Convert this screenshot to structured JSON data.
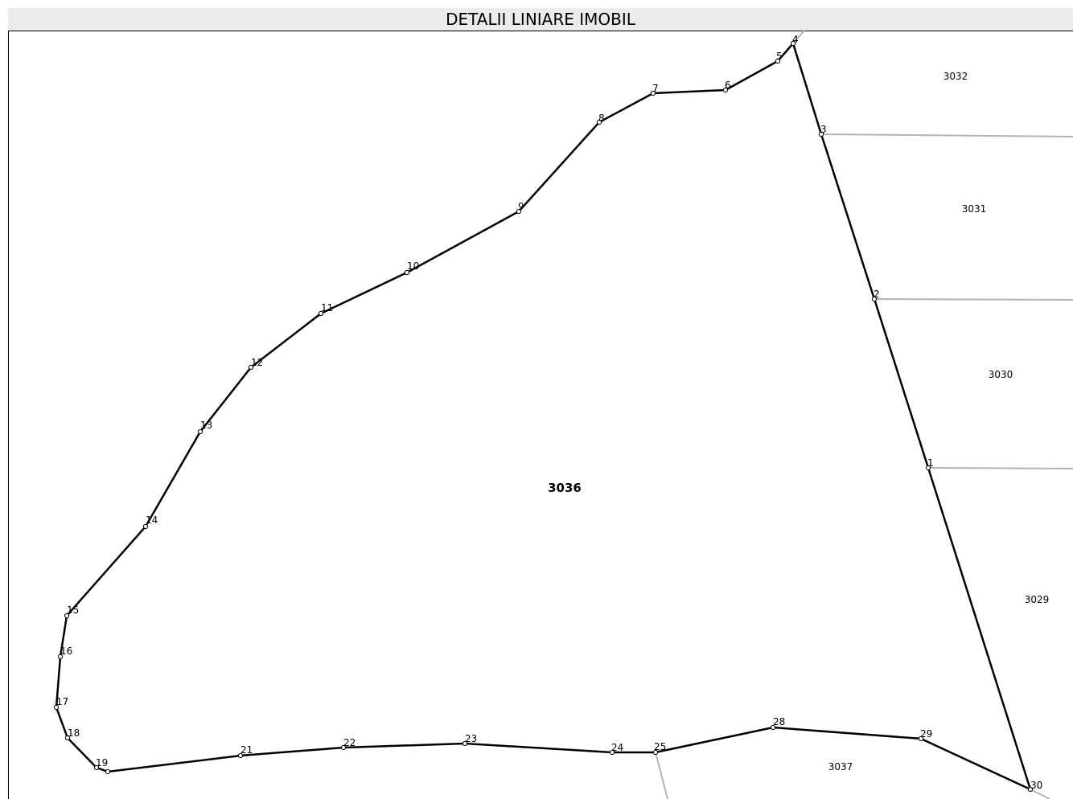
{
  "header": {
    "title": "DETALII LINIARE IMOBIL"
  },
  "main_parcel": {
    "id": "3036"
  },
  "neighbor_parcels": [
    "3032",
    "3031",
    "3030",
    "3029",
    "3037"
  ],
  "boundary_points": [
    "1",
    "2",
    "3",
    "4",
    "5",
    "6",
    "7",
    "8",
    "9",
    "10",
    "11",
    "12",
    "13",
    "14",
    "15",
    "16",
    "17",
    "18",
    "19",
    "21",
    "22",
    "23",
    "24",
    "25",
    "28",
    "29",
    "30"
  ],
  "colors": {
    "boundary": "#000000",
    "neighbor_lines": "#b4b4b4",
    "header_bg": "#ebebeb"
  }
}
